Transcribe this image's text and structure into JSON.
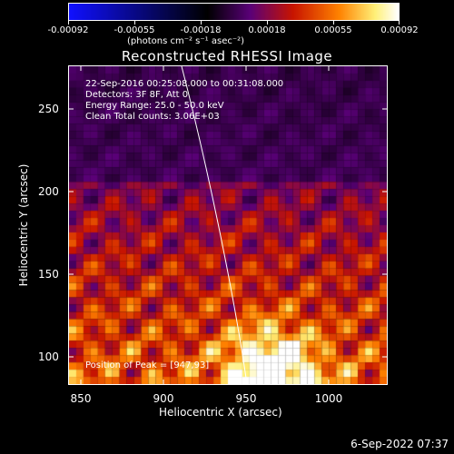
{
  "colorbar": {
    "tick_labels": [
      "-0.00092",
      "-0.00055",
      "-0.00018",
      "0.00018",
      "0.00055",
      "0.00092"
    ],
    "units_label": "(photons cm⁻² s⁻¹ asec⁻²)",
    "colors": [
      "#1010ff",
      "#000000",
      "#c02000",
      "#ff8000",
      "#ffffd0",
      "#ffffff"
    ]
  },
  "title": "Reconstructed RHESSI Image",
  "info": {
    "time_range": "22-Sep-2016 00:25:08.000 to 00:31:08.000",
    "detectors": "Detectors: 3F 8F, Att 0",
    "energy_range": "Energy Range: 25.0 - 50.0 keV",
    "method": "Clean     Total counts: 3.06E+03",
    "peak": "Position of Peak = [947,93]"
  },
  "axes": {
    "xlabel": "Heliocentric X (arcsec)",
    "ylabel": "Heliocentric Y (arcsec)",
    "x_ticks": [
      "850",
      "900",
      "950",
      "1000"
    ],
    "y_ticks": [
      "250",
      "200",
      "150",
      "100"
    ],
    "xlim": [
      842,
      1033
    ],
    "ylim": [
      83,
      274
    ]
  },
  "timestamp": "6-Sep-2022 07:37"
}
